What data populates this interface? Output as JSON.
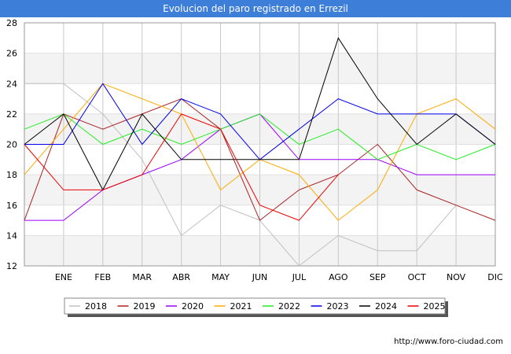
{
  "chart_data": {
    "type": "line",
    "title": "Evolucion del paro registrado en Errezil",
    "xlabel": "",
    "ylabel": "",
    "categories": [
      "",
      "ENE",
      "FEB",
      "MAR",
      "ABR",
      "MAY",
      "JUN",
      "JUL",
      "AGO",
      "SEP",
      "OCT",
      "NOV",
      "DIC"
    ],
    "ylim": [
      12,
      28
    ],
    "yticks": [
      12,
      14,
      16,
      18,
      20,
      22,
      24,
      26,
      28
    ],
    "grid": true,
    "legend_position": "bottom",
    "series": [
      {
        "name": "2018",
        "color": "#c0c0c0",
        "values": [
          24,
          24,
          22,
          19,
          14,
          16,
          15,
          12,
          14,
          13,
          13,
          16,
          null
        ]
      },
      {
        "name": "2019",
        "color": "#aa2222",
        "values": [
          15,
          22,
          21,
          22,
          23,
          21,
          15,
          17,
          18,
          20,
          17,
          16,
          15
        ]
      },
      {
        "name": "2020",
        "color": "#9900ff",
        "values": [
          15,
          15,
          17,
          18,
          19,
          21,
          22,
          19,
          19,
          19,
          18,
          18,
          18
        ]
      },
      {
        "name": "2021",
        "color": "#ffaa00",
        "values": [
          18,
          21,
          24,
          23,
          22,
          17,
          19,
          18,
          15,
          17,
          22,
          23,
          21
        ]
      },
      {
        "name": "2022",
        "color": "#22ee22",
        "values": [
          21,
          22,
          20,
          21,
          20,
          21,
          22,
          20,
          21,
          19,
          20,
          19,
          20
        ]
      },
      {
        "name": "2023",
        "color": "#0000ee",
        "values": [
          20,
          20,
          24,
          20,
          23,
          22,
          19,
          21,
          23,
          22,
          22,
          22,
          20
        ]
      },
      {
        "name": "2024",
        "color": "#000000",
        "values": [
          20,
          22,
          17,
          22,
          19,
          19,
          19,
          19,
          27,
          23,
          20,
          22,
          20
        ]
      },
      {
        "name": "2025",
        "color": "#ee0000",
        "values": [
          20,
          17,
          17,
          18,
          22,
          21,
          16,
          15,
          18,
          null,
          null,
          null,
          null
        ]
      }
    ]
  },
  "source_text": "http://www.foro-ciudad.com"
}
